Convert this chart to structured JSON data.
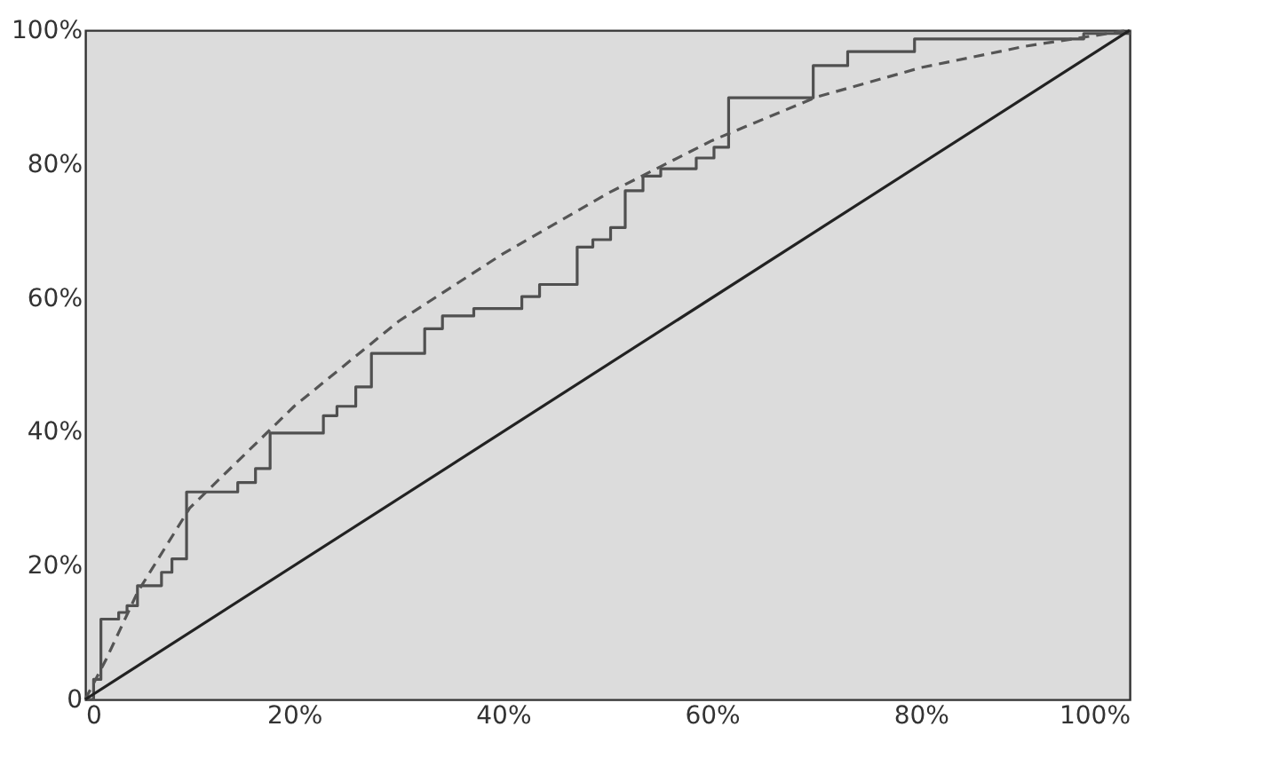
{
  "chart_data": {
    "type": "line",
    "xlim": [
      0,
      100
    ],
    "ylim": [
      0,
      100
    ],
    "xticks": [
      0,
      {
        "value": 20,
        "label": "20%"
      },
      {
        "value": 40,
        "label": "40%"
      },
      {
        "value": 60,
        "label": "60%"
      },
      {
        "value": 80,
        "label": "80%"
      },
      {
        "value": 100,
        "label": "100%"
      }
    ],
    "yticks": [
      0,
      {
        "value": 20,
        "label": "20%"
      },
      {
        "value": 40,
        "label": "40%"
      },
      {
        "value": 60,
        "label": "60%"
      },
      {
        "value": 80,
        "label": "80%"
      },
      {
        "value": 100,
        "label": "100%"
      }
    ],
    "grid": false,
    "marker": "none",
    "series": [
      {
        "type": "step",
        "color": "#505050",
        "line_style": "solid",
        "x": [
          0,
          0.8,
          1.5,
          3.2,
          4,
          5,
          7.3,
          8.3,
          9.7,
          14.6,
          16.3,
          17.7,
          22.8,
          24.1,
          25.9,
          27.4,
          32.5,
          34.2,
          37.2,
          41.8,
          43.5,
          47.1,
          48.6,
          50.3,
          51.7,
          53.4,
          55.1,
          58.5,
          60.2,
          61.6,
          69.7,
          73,
          79.4,
          95.6,
          100
        ],
        "values": [
          0,
          3,
          12,
          13,
          14,
          17,
          19,
          21,
          31,
          32.4,
          34.5,
          39.8,
          42.4,
          43.8,
          46.7,
          51.7,
          55.4,
          57.3,
          58.4,
          60.2,
          62,
          67.6,
          68.7,
          70.5,
          76,
          78.2,
          79.3,
          80.9,
          82.5,
          89.9,
          94.7,
          96.8,
          98.7,
          99.5,
          100
        ]
      },
      {
        "color": "#555555",
        "line_style": "dashed",
        "x": [
          0,
          2,
          5,
          10,
          20,
          30,
          40,
          50,
          60,
          70,
          80,
          90,
          100
        ],
        "values": [
          0,
          6,
          16,
          28.6,
          43.8,
          56.5,
          66.6,
          75.6,
          83.5,
          90,
          94.4,
          97.6,
          100
        ]
      },
      {
        "color": "#222222",
        "line_style": "solid",
        "x": [
          0,
          100
        ],
        "values": [
          0,
          100
        ]
      }
    ]
  }
}
